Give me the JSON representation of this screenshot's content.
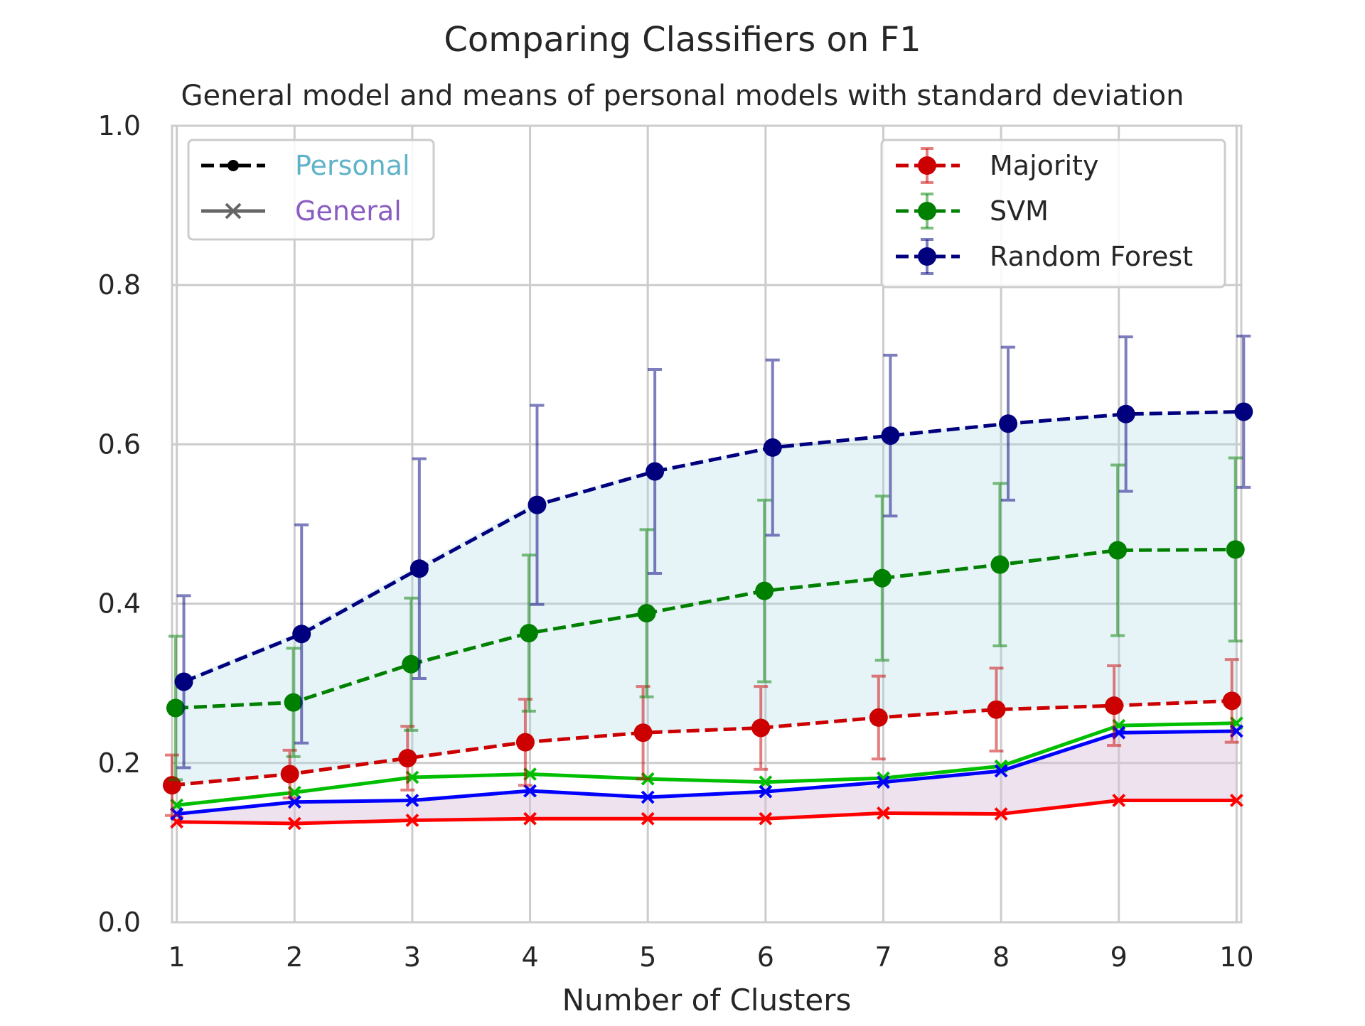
{
  "chart_data": {
    "type": "line",
    "title": "Comparing Classifiers on F1",
    "subtitle": "General model and means of personal models with standard deviation",
    "xlabel": "Number of Clusters",
    "ylabel": "",
    "x": [
      1,
      2,
      3,
      4,
      5,
      6,
      7,
      8,
      9,
      10
    ],
    "xlim": [
      0.96,
      10.04
    ],
    "ylim": [
      0.0,
      1.0
    ],
    "yticks": [
      "0.0",
      "0.2",
      "0.4",
      "0.6",
      "0.8",
      "1.0"
    ],
    "xticks": [
      "1",
      "2",
      "3",
      "4",
      "5",
      "6",
      "7",
      "8",
      "9",
      "10"
    ],
    "grid": true,
    "personal_series": [
      {
        "name": "Majority",
        "color": "#cc0000",
        "values": [
          0.172,
          0.186,
          0.206,
          0.226,
          0.238,
          0.244,
          0.257,
          0.267,
          0.272,
          0.278
        ],
        "std": [
          0.038,
          0.03,
          0.04,
          0.054,
          0.058,
          0.052,
          0.052,
          0.052,
          0.05,
          0.052
        ]
      },
      {
        "name": "SVM",
        "color": "#008000",
        "values": [
          0.269,
          0.276,
          0.324,
          0.363,
          0.388,
          0.416,
          0.432,
          0.449,
          0.467,
          0.468
        ],
        "std": [
          0.09,
          0.068,
          0.083,
          0.098,
          0.105,
          0.114,
          0.103,
          0.102,
          0.107,
          0.115
        ]
      },
      {
        "name": "Random Forest",
        "color": "#00007f",
        "values": [
          0.302,
          0.362,
          0.444,
          0.524,
          0.566,
          0.596,
          0.611,
          0.626,
          0.638,
          0.641
        ],
        "std": [
          0.108,
          0.137,
          0.138,
          0.125,
          0.128,
          0.11,
          0.101,
          0.096,
          0.097,
          0.095
        ]
      }
    ],
    "general_series": [
      {
        "name": "Majority",
        "color": "#ff0000",
        "values": [
          0.126,
          0.124,
          0.128,
          0.13,
          0.13,
          0.13,
          0.137,
          0.136,
          0.153,
          0.153
        ]
      },
      {
        "name": "SVM",
        "color": "#00bf00",
        "values": [
          0.147,
          0.163,
          0.182,
          0.186,
          0.18,
          0.176,
          0.181,
          0.196,
          0.247,
          0.25
        ]
      },
      {
        "name": "Random Forest",
        "color": "#0000ff",
        "values": [
          0.136,
          0.151,
          0.153,
          0.165,
          0.157,
          0.164,
          0.176,
          0.19,
          0.238,
          0.24
        ]
      }
    ],
    "shaded_regions": [
      {
        "between": [
          "Random Forest personal",
          "Majority personal"
        ],
        "color": "#add8e6"
      },
      {
        "between": [
          "Random Forest general",
          "Majority general"
        ],
        "color": "#d8bfd8"
      }
    ],
    "legend_style": {
      "placement": "top-left",
      "entries": [
        {
          "label": "Personal",
          "color": "#5fb3c9",
          "style": "dashed-dot"
        },
        {
          "label": "General",
          "color": "#8a5cc2",
          "style": "solid-x"
        }
      ]
    },
    "legend_classifiers": {
      "placement": "top-right",
      "entries": [
        "Majority",
        "SVM",
        "Random Forest"
      ]
    }
  }
}
